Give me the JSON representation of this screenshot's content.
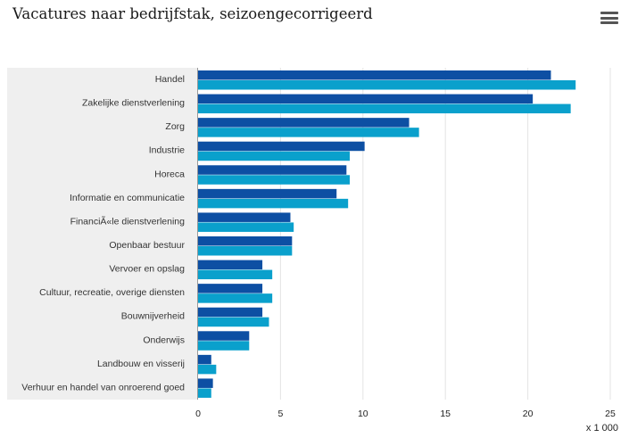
{
  "title": "Vacatures naar bedrijfstak, seizoengecorrigeerd",
  "menu_icon": "hamburger-menu-icon",
  "chart_data": {
    "type": "bar",
    "orientation": "horizontal",
    "categories": [
      "Handel",
      "Zakelijke dienstverlening",
      "Zorg",
      "Industrie",
      "Horeca",
      "Informatie en communicatie",
      "FinanciÃ«le dienstverlening",
      "Openbaar bestuur",
      "Vervoer en opslag",
      "Cultuur, recreatie, overige diensten",
      "Bouwnijverheid",
      "Onderwijs",
      "Landbouw en visserij",
      "Verhuur en handel van onroerend goed"
    ],
    "series": [
      {
        "color": "#0d4fa3",
        "values": [
          21.4,
          20.3,
          12.8,
          10.1,
          9.0,
          8.4,
          5.6,
          5.7,
          3.9,
          3.9,
          3.9,
          3.1,
          0.8,
          0.9
        ]
      },
      {
        "color": "#0aa0cc",
        "values": [
          22.9,
          22.6,
          13.4,
          9.2,
          9.2,
          9.1,
          5.8,
          5.7,
          4.5,
          4.5,
          4.3,
          3.1,
          1.1,
          0.8
        ]
      }
    ],
    "xlim": [
      0,
      25
    ],
    "xticks": [
      "0",
      "5",
      "10",
      "15",
      "20",
      "25"
    ],
    "xunit": "x 1 000",
    "grid": true
  }
}
